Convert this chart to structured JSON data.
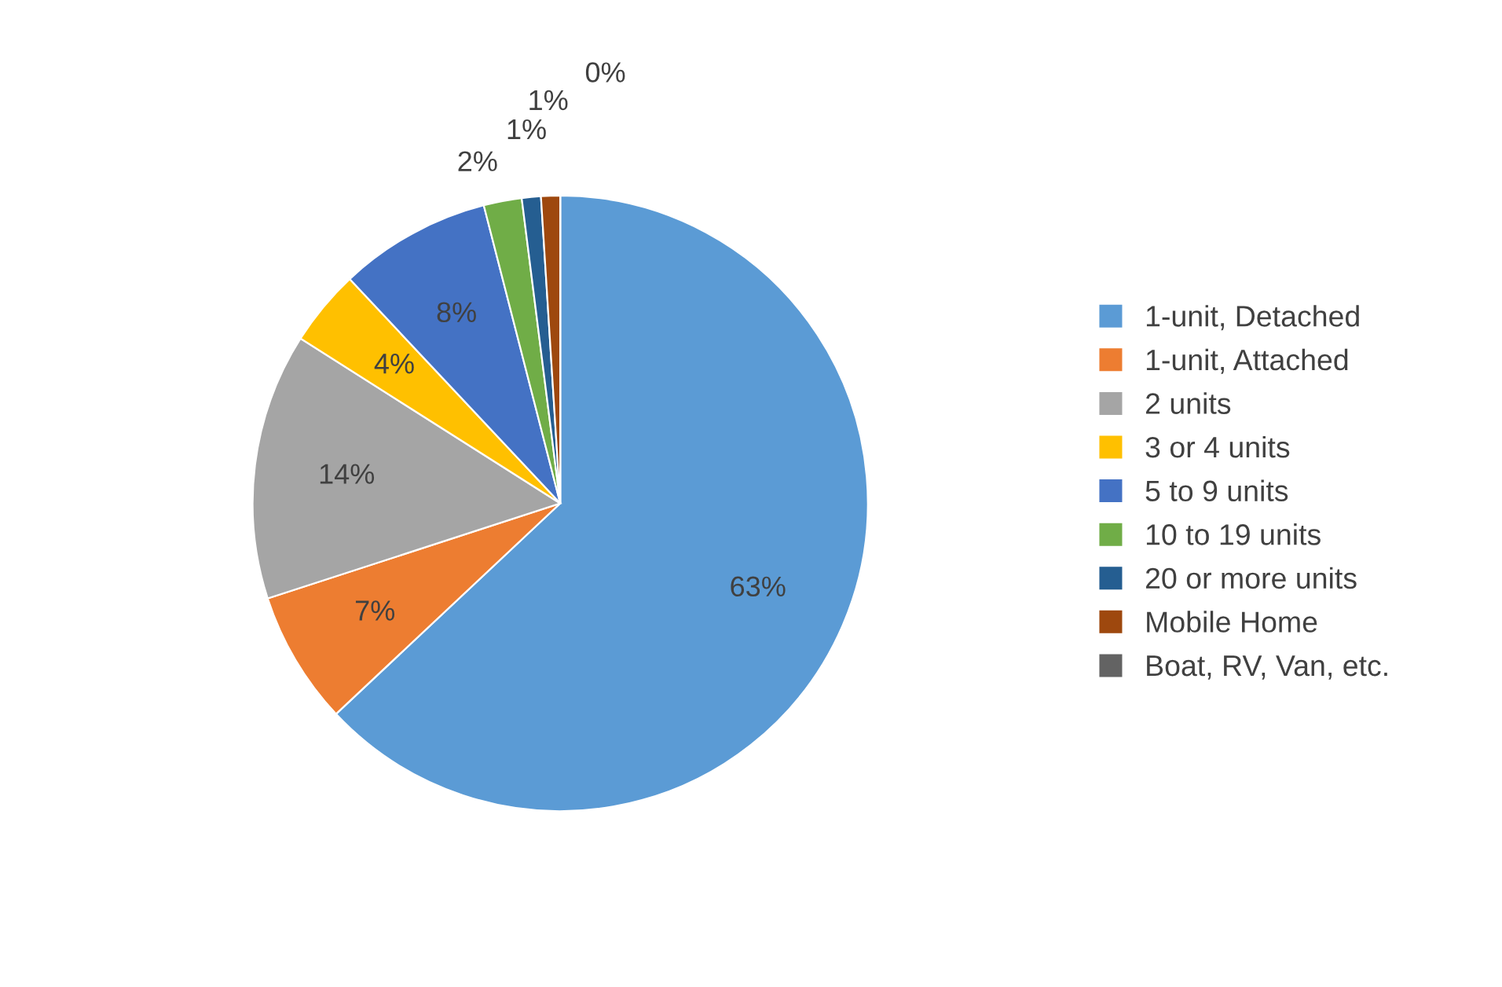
{
  "chart_data": {
    "type": "pie",
    "categories": [
      "1-unit, Detached",
      "1-unit, Attached",
      "2 units",
      "3 or 4 units",
      "5 to 9 units",
      "10 to 19 units",
      "20 or more units",
      "Mobile Home",
      "Boat, RV, Van, etc."
    ],
    "values": [
      63,
      7,
      14,
      4,
      8,
      2,
      1,
      1,
      0
    ],
    "colors": [
      "#5b9bd5",
      "#ed7d31",
      "#a5a5a5",
      "#ffc000",
      "#4472c4",
      "#70ad47",
      "#255e91",
      "#9e480e",
      "#636363"
    ],
    "value_labels": [
      "63%",
      "7%",
      "14%",
      "4%",
      "8%",
      "2%",
      "1%",
      "1%",
      "0%"
    ],
    "legend": "right"
  }
}
